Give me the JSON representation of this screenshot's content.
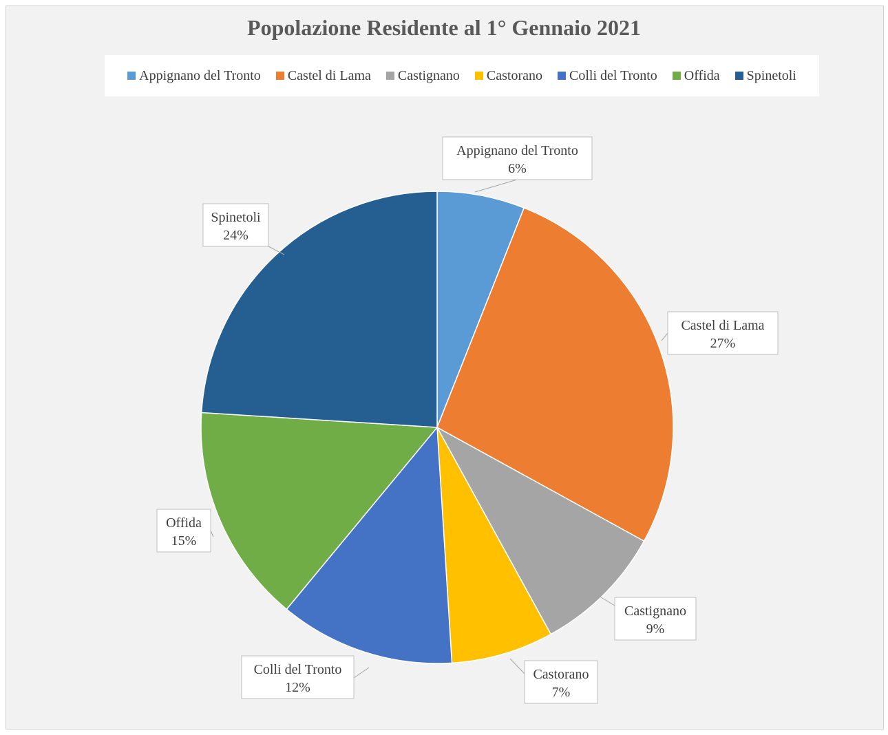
{
  "chart_data": {
    "type": "pie",
    "title": "Popolazione Residente al 1° Gennaio 2021",
    "legend_position": "top",
    "slices": [
      {
        "name": "Appignano del Tronto",
        "value": 6,
        "label": "6%",
        "color": "#5b9bd5"
      },
      {
        "name": "Castel di Lama",
        "value": 27,
        "label": "27%",
        "color": "#ed7d31"
      },
      {
        "name": "Castignano",
        "value": 9,
        "label": "9%",
        "color": "#a5a5a5"
      },
      {
        "name": "Castorano",
        "value": 7,
        "label": "7%",
        "color": "#ffc000"
      },
      {
        "name": "Colli del Tronto",
        "value": 12,
        "label": "12%",
        "color": "#4472c4"
      },
      {
        "name": "Offida",
        "value": 15,
        "label": "15%",
        "color": "#70ad47"
      },
      {
        "name": "Spinetoli",
        "value": 24,
        "label": "24%",
        "color": "#255e91"
      }
    ]
  }
}
